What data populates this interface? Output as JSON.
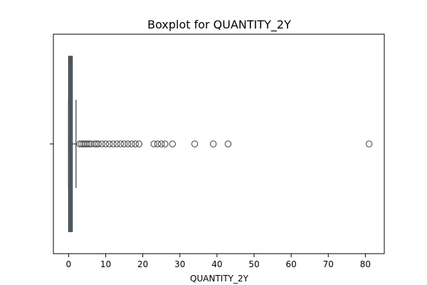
{
  "chart_data": {
    "type": "box",
    "orientation": "horizontal",
    "title": "Boxplot for QUANTITY_2Y",
    "xlabel": "QUANTITY_2Y",
    "ylabel": "",
    "xlim": [
      -4.1,
      85.1
    ],
    "xticks": [
      0,
      10,
      20,
      30,
      40,
      50,
      60,
      70,
      80
    ],
    "grid": false,
    "legend": "none",
    "box": {
      "min": 0,
      "q1": 0,
      "median": 0.5,
      "q3": 1,
      "whisker_high": 2,
      "fill_color": "#3274a1",
      "edge_color": "#3f3f3f"
    },
    "outliers": [
      3,
      3.5,
      4,
      4.5,
      5,
      5.5,
      6,
      7,
      7.5,
      8,
      9,
      10,
      11,
      12,
      13,
      14,
      15,
      16,
      17,
      18,
      19,
      23,
      24,
      25,
      26,
      28,
      34,
      39,
      43,
      81
    ]
  }
}
